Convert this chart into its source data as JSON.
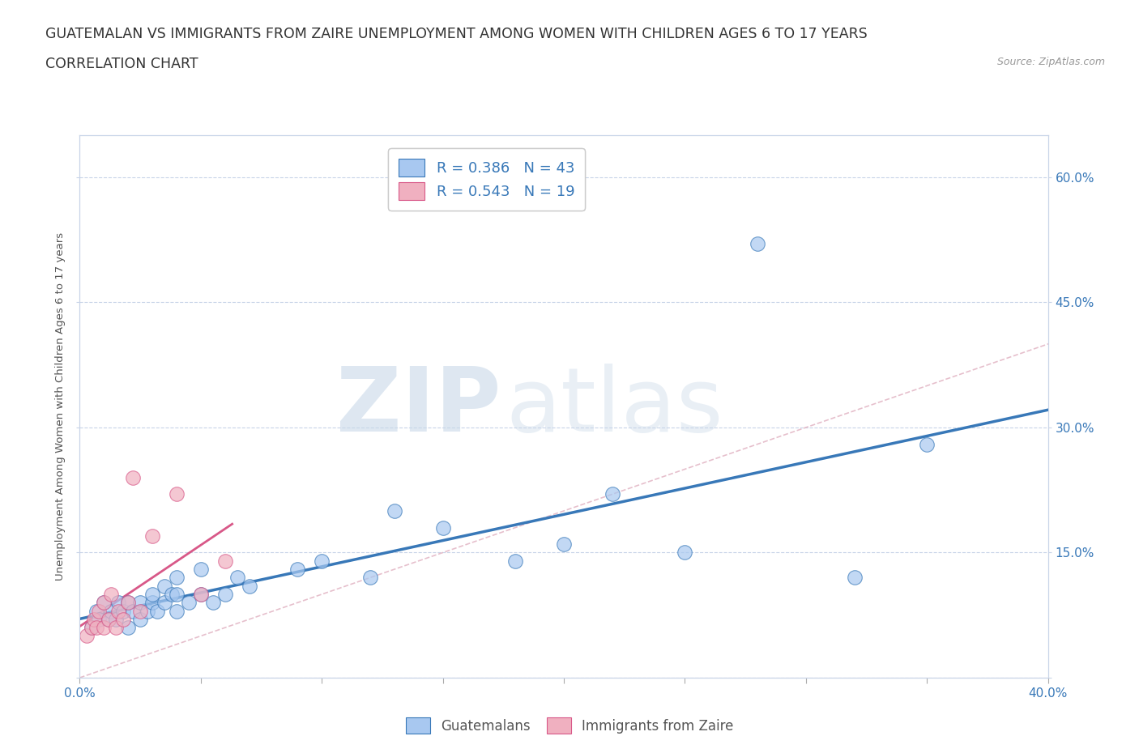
{
  "title_line1": "GUATEMALAN VS IMMIGRANTS FROM ZAIRE UNEMPLOYMENT AMONG WOMEN WITH CHILDREN AGES 6 TO 17 YEARS",
  "title_line2": "CORRELATION CHART",
  "source": "Source: ZipAtlas.com",
  "ylabel": "Unemployment Among Women with Children Ages 6 to 17 years",
  "xlim": [
    0.0,
    0.4
  ],
  "ylim": [
    0.0,
    0.65
  ],
  "xticks": [
    0.0,
    0.05,
    0.1,
    0.15,
    0.2,
    0.25,
    0.3,
    0.35,
    0.4
  ],
  "xticklabels": [
    "0.0%",
    "",
    "",
    "",
    "",
    "",
    "",
    "",
    "40.0%"
  ],
  "yticks": [
    0.0,
    0.15,
    0.3,
    0.45,
    0.6
  ],
  "yticklabels_left": [
    "",
    "",
    "",
    "",
    ""
  ],
  "yticklabels_right": [
    "",
    "15.0%",
    "30.0%",
    "45.0%",
    "60.0%"
  ],
  "watermark_zip": "ZIP",
  "watermark_atlas": "atlas",
  "blue_color": "#a8c8f0",
  "pink_color": "#f0b0c0",
  "blue_line_color": "#3878b8",
  "pink_line_color": "#d85888",
  "diag_line_color": "#e0b0c0",
  "legend_text_color": "#3878b8",
  "R_blue": 0.386,
  "N_blue": 43,
  "R_pink": 0.543,
  "N_pink": 19,
  "guatemalan_x": [
    0.005,
    0.007,
    0.008,
    0.01,
    0.012,
    0.013,
    0.015,
    0.016,
    0.018,
    0.02,
    0.02,
    0.022,
    0.025,
    0.025,
    0.028,
    0.03,
    0.03,
    0.032,
    0.035,
    0.035,
    0.038,
    0.04,
    0.04,
    0.04,
    0.045,
    0.05,
    0.05,
    0.055,
    0.06,
    0.065,
    0.07,
    0.09,
    0.1,
    0.12,
    0.13,
    0.15,
    0.18,
    0.2,
    0.22,
    0.25,
    0.28,
    0.32,
    0.35
  ],
  "guatemalan_y": [
    0.06,
    0.08,
    0.07,
    0.09,
    0.07,
    0.08,
    0.07,
    0.09,
    0.08,
    0.06,
    0.09,
    0.08,
    0.07,
    0.09,
    0.08,
    0.09,
    0.1,
    0.08,
    0.09,
    0.11,
    0.1,
    0.08,
    0.1,
    0.12,
    0.09,
    0.1,
    0.13,
    0.09,
    0.1,
    0.12,
    0.11,
    0.13,
    0.14,
    0.12,
    0.2,
    0.18,
    0.14,
    0.16,
    0.22,
    0.15,
    0.52,
    0.12,
    0.28
  ],
  "zaire_x": [
    0.003,
    0.005,
    0.006,
    0.007,
    0.008,
    0.01,
    0.01,
    0.012,
    0.013,
    0.015,
    0.016,
    0.018,
    0.02,
    0.022,
    0.025,
    0.03,
    0.04,
    0.05,
    0.06
  ],
  "zaire_y": [
    0.05,
    0.06,
    0.07,
    0.06,
    0.08,
    0.06,
    0.09,
    0.07,
    0.1,
    0.06,
    0.08,
    0.07,
    0.09,
    0.24,
    0.08,
    0.17,
    0.22,
    0.1,
    0.14
  ],
  "background_color": "#ffffff",
  "grid_color": "#c8d4e8",
  "title_fontsize": 12.5,
  "axis_label_fontsize": 9.5,
  "tick_fontsize": 11,
  "legend_fontsize": 13
}
